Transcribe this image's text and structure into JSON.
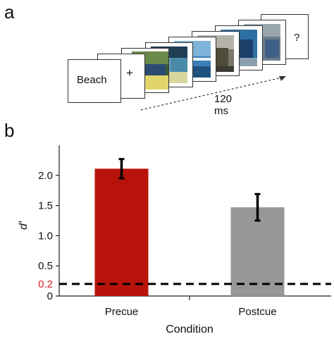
{
  "panels": {
    "a": "a",
    "b": "b"
  },
  "rsvp": {
    "cue_word": "Beach",
    "fixation": "+",
    "probe": "?",
    "duration": "120 ms"
  },
  "chart_data": {
    "type": "bar",
    "categories": [
      "Precue",
      "Postcue"
    ],
    "values": [
      2.11,
      1.47
    ],
    "errors": [
      0.16,
      0.22
    ],
    "colors": [
      "#b8130a",
      "#969895"
    ],
    "xlabel": "Condition",
    "ylabel": "d′",
    "ylim": [
      0,
      2.5
    ],
    "yticks": [
      0,
      0.5,
      1.0,
      1.5,
      2.0
    ],
    "ytick_labels": [
      "0",
      "0.5",
      "1.0",
      "1.5",
      "2.0"
    ],
    "reference_line": {
      "value": 0.2,
      "label": "0.2",
      "color": "#d62020",
      "style": "dashed"
    },
    "grid": false,
    "legend": "none"
  }
}
